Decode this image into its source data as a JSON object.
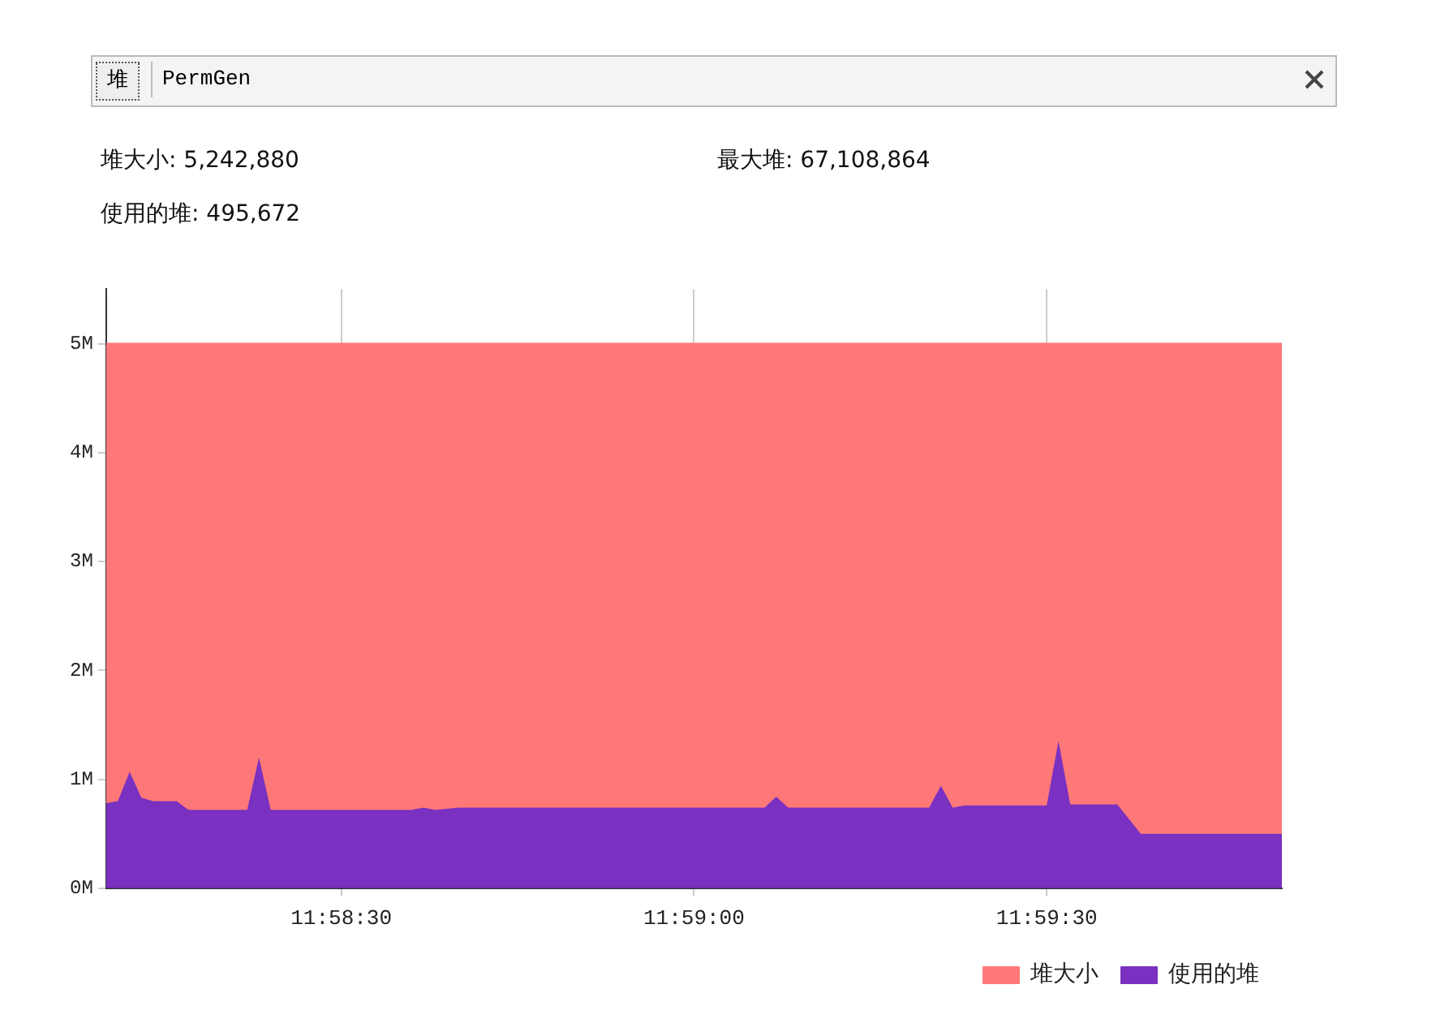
{
  "chart_data": {
    "type": "area",
    "annotations": [
      "堆",
      "PermGen",
      "堆大小: 5,242,880",
      "最大堆: 67,108,864",
      "使用的堆: 495,672"
    ],
    "x": [
      11.969444,
      11.969722,
      11.97,
      11.970277,
      11.970555,
      11.971111,
      11.971388,
      11.972777,
      11.973055,
      11.973333,
      11.976666,
      11.976944,
      11.977222,
      11.977777,
      11.985,
      11.985277,
      11.985555,
      11.988888,
      11.989166,
      11.989444,
      11.989722,
      11.991666,
      11.991944,
      11.992222,
      11.993333,
      11.993888,
      11.997222
    ],
    "series": [
      {
        "name": "堆大小",
        "color": "#ff7878",
        "values": [
          5,
          5,
          5,
          5,
          5,
          5,
          5,
          5,
          5,
          5,
          5,
          5,
          5,
          5,
          5,
          5,
          5,
          5,
          5,
          5,
          5,
          5,
          5,
          5,
          5,
          5,
          5
        ]
      },
      {
        "name": "使用的堆",
        "color": "#7a30c0",
        "values": [
          0.78,
          0.8,
          1.07,
          0.83,
          0.8,
          0.8,
          0.72,
          0.72,
          1.2,
          0.72,
          0.72,
          0.74,
          0.72,
          0.74,
          0.74,
          0.84,
          0.74,
          0.74,
          0.94,
          0.74,
          0.76,
          0.76,
          1.35,
          0.77,
          0.77,
          0.5,
          0.5
        ]
      }
    ],
    "xlim": [
      11.969444,
      11.997222
    ],
    "xticks": [
      {
        "value": 11.975,
        "label": "11:58:30"
      },
      {
        "value": 11.983333,
        "label": "11:59:00"
      },
      {
        "value": 11.991667,
        "label": "11:59:30"
      }
    ],
    "ylim": [
      0,
      5.5
    ],
    "yticks": [
      {
        "value": 0,
        "label": "0M"
      },
      {
        "value": 1,
        "label": "1M"
      },
      {
        "value": 2,
        "label": "2M"
      },
      {
        "value": 3,
        "label": "3M"
      },
      {
        "value": 4,
        "label": "4M"
      },
      {
        "value": 5,
        "label": "5M"
      }
    ],
    "grid": true,
    "legend": "bottom right",
    "marker": "none"
  }
}
